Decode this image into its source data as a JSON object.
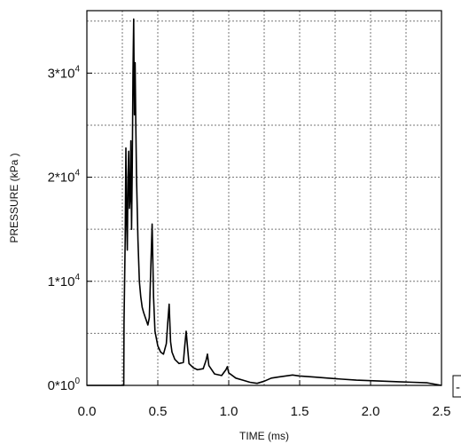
{
  "chart_data": {
    "type": "line",
    "title": "",
    "xlabel": "TIME (ms)",
    "ylabel": "PRESSURE (kPa )",
    "xlim": [
      0,
      2.5
    ],
    "ylim": [
      0,
      36000
    ],
    "grid": true,
    "x_ticks": [
      {
        "value": 0.0,
        "label": "0.0"
      },
      {
        "value": 0.5,
        "label": "0.5"
      },
      {
        "value": 1.0,
        "label": "1.0"
      },
      {
        "value": 1.5,
        "label": "1.5"
      },
      {
        "value": 2.0,
        "label": "2.0"
      },
      {
        "value": 2.5,
        "label": "2.5"
      }
    ],
    "y_ticks": [
      {
        "value": 0,
        "mantissa": "0*10",
        "exponent": "0"
      },
      {
        "value": 10000,
        "mantissa": "1*10",
        "exponent": "4"
      },
      {
        "value": 20000,
        "mantissa": "2*10",
        "exponent": "4"
      },
      {
        "value": 30000,
        "mantissa": "3*10",
        "exponent": "4"
      }
    ],
    "line_color": "#000000",
    "series": [
      {
        "x": [
          0.0,
          0.26,
          0.262,
          0.27,
          0.275,
          0.28,
          0.285,
          0.29,
          0.295,
          0.3,
          0.305,
          0.31,
          0.315,
          0.32,
          0.325,
          0.33,
          0.335,
          0.34,
          0.345,
          0.35,
          0.355,
          0.36,
          0.365,
          0.37,
          0.38,
          0.39,
          0.4,
          0.41,
          0.42,
          0.43,
          0.44,
          0.45,
          0.46,
          0.465,
          0.47,
          0.48,
          0.5,
          0.52,
          0.54,
          0.56,
          0.57,
          0.58,
          0.585,
          0.59,
          0.6,
          0.62,
          0.65,
          0.68,
          0.69,
          0.7,
          0.71,
          0.72,
          0.75,
          0.78,
          0.82,
          0.84,
          0.85,
          0.86,
          0.9,
          0.95,
          0.98,
          0.99,
          1.0,
          1.05,
          1.1,
          1.15,
          1.2,
          1.25,
          1.3,
          1.35,
          1.4,
          1.45,
          1.5,
          1.6,
          1.7,
          1.8,
          1.9,
          2.0,
          2.1,
          2.2,
          2.3,
          2.4,
          2.5
        ],
        "y": [
          0,
          0,
          6000,
          14000,
          22800,
          16000,
          13000,
          20000,
          22500,
          17000,
          18000,
          23500,
          15000,
          21000,
          30000,
          35200,
          26000,
          31000,
          25000,
          20000,
          17000,
          14000,
          12000,
          10000,
          8500,
          7500,
          7000,
          6600,
          6200,
          5800,
          6500,
          11000,
          15500,
          12000,
          8500,
          5200,
          3800,
          3200,
          3000,
          4000,
          6000,
          7800,
          6000,
          4200,
          3200,
          2500,
          2100,
          2200,
          3800,
          5200,
          3600,
          2100,
          1700,
          1500,
          1600,
          2400,
          3000,
          1900,
          1100,
          950,
          1500,
          1800,
          1200,
          700,
          500,
          300,
          200,
          400,
          700,
          800,
          900,
          1000,
          900,
          800,
          700,
          600,
          500,
          450,
          400,
          350,
          300,
          250,
          0
        ]
      }
    ],
    "partial_legend_glyph": "-"
  }
}
